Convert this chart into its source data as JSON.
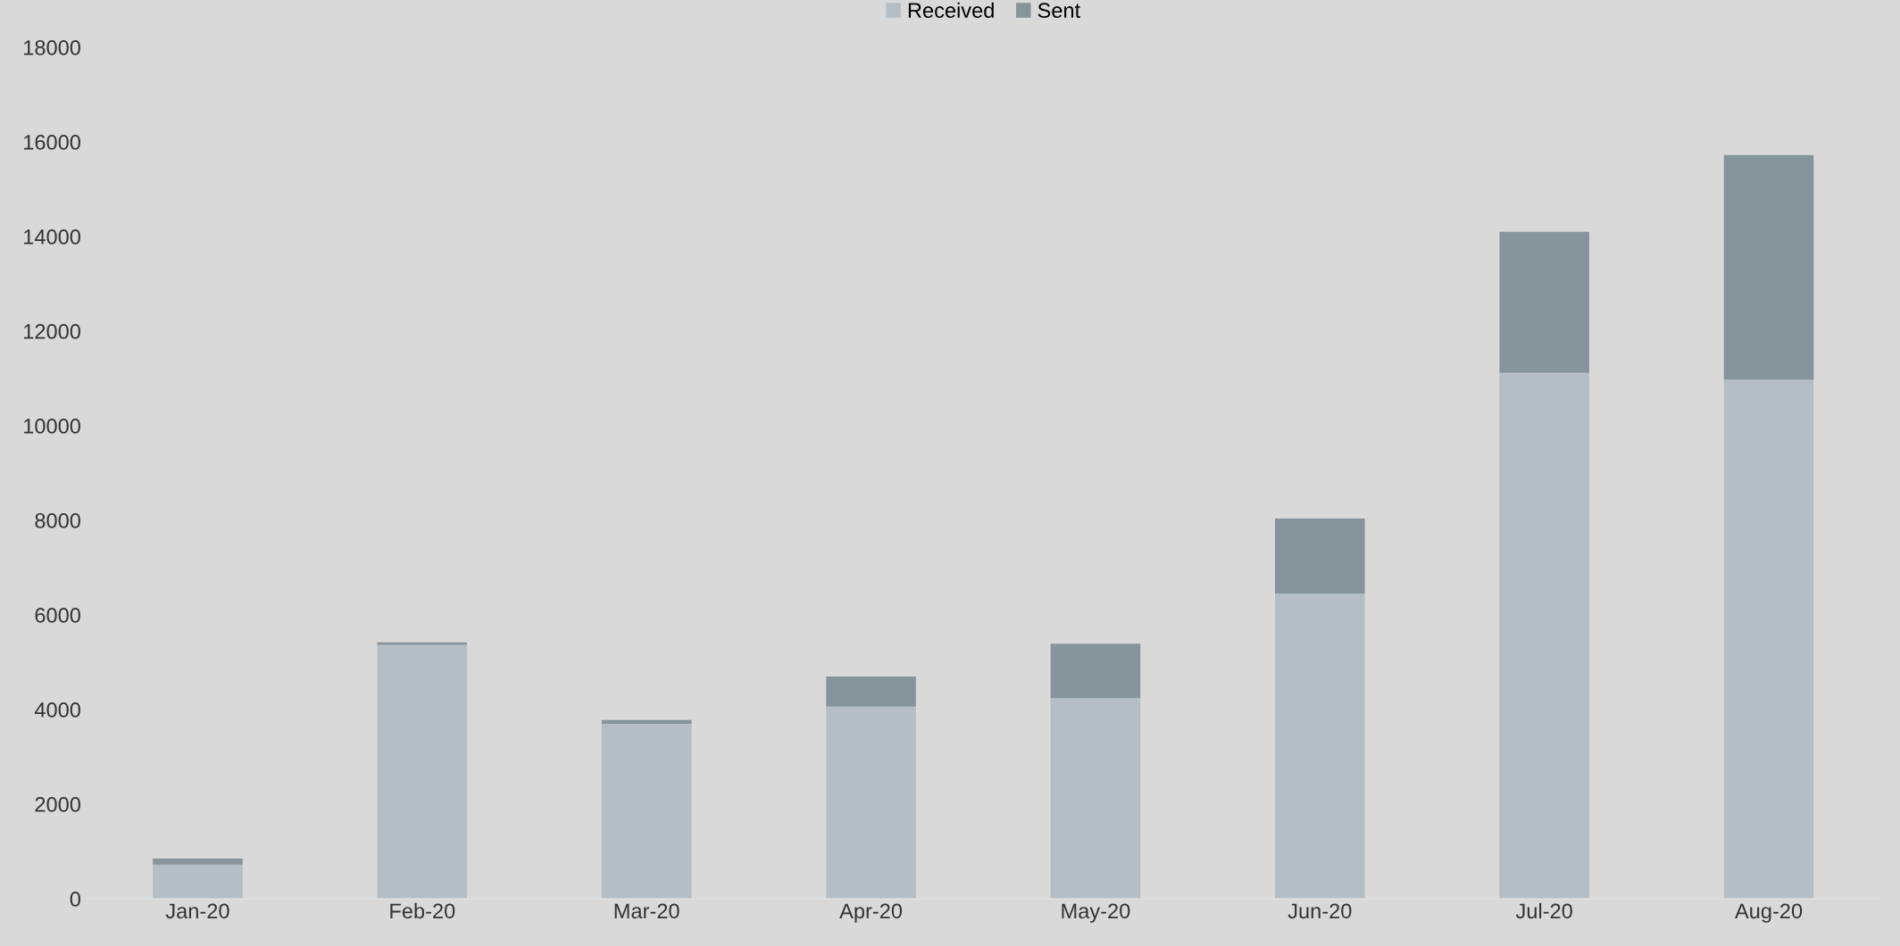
{
  "chart_data": {
    "type": "bar",
    "stacked": true,
    "categories": [
      "Jan-20",
      "Feb-20",
      "Mar-20",
      "Apr-20",
      "May-20",
      "Jun-20",
      "Jul-20",
      "Aug-20"
    ],
    "series": [
      {
        "name": "Received",
        "color": "#b4bec4",
        "values": [
          720,
          5370,
          3700,
          4060,
          4240,
          6450,
          11120,
          10970
        ]
      },
      {
        "name": "Sent",
        "color": "#86949b",
        "values": [
          130,
          50,
          80,
          640,
          1150,
          1590,
          2980,
          4750
        ]
      }
    ],
    "ylim": [
      0,
      18000
    ],
    "yticks": [
      0,
      2000,
      4000,
      6000,
      8000,
      10000,
      12000,
      14000,
      16000,
      18000
    ],
    "grid": false,
    "legend": "top"
  }
}
